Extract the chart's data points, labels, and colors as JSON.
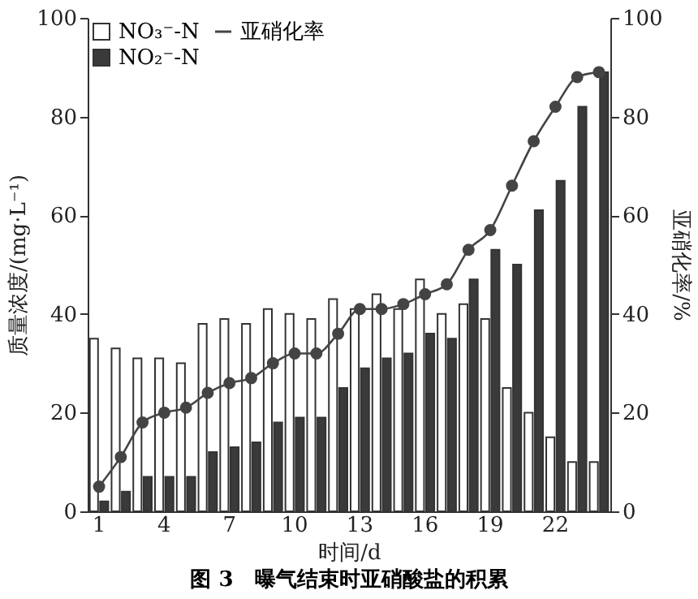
{
  "chart_data": {
    "type": "bar",
    "title": "图 3　曝气结束时亚硝酸盐的积累",
    "xlabel": "时间/d",
    "ylabel": "质量浓度/(mg·L⁻¹)",
    "y2label": "亚硝化率/%",
    "categories": [
      "1",
      null,
      null,
      "4",
      null,
      null,
      "7",
      null,
      null,
      "10",
      null,
      null,
      "13",
      null,
      null,
      "16",
      null,
      null,
      "19",
      null,
      null,
      "22",
      null,
      null
    ],
    "series": [
      {
        "name": "NO₃⁻-N",
        "color": "#ffffff",
        "values": [
          35,
          33,
          31,
          31,
          30,
          38,
          39,
          38,
          41,
          40,
          39,
          43,
          41,
          44,
          41,
          47,
          40,
          42,
          39,
          25,
          20,
          15,
          10,
          10
        ]
      },
      {
        "name": "NO₂⁻-N",
        "color": "#3a3a3a",
        "values": [
          2,
          4,
          7,
          7,
          7,
          12,
          13,
          14,
          18,
          19,
          19,
          25,
          29,
          31,
          32,
          36,
          35,
          47,
          53,
          50,
          61,
          67,
          82,
          89
        ]
      },
      {
        "name": "亚硝化率",
        "type": "line",
        "axis": "y2",
        "color": "#444444",
        "values": [
          5,
          11,
          18,
          20,
          21,
          24,
          26,
          27,
          30,
          32,
          32,
          36,
          41,
          41,
          42,
          44,
          46,
          53,
          57,
          66,
          75,
          82,
          88,
          89
        ]
      }
    ],
    "ylim": [
      0,
      100
    ],
    "yticks": [
      0,
      20,
      40,
      60,
      80,
      100
    ],
    "y2lim": [
      0,
      100
    ],
    "y2ticks": [
      0,
      20,
      40,
      60,
      80,
      100
    ],
    "legend": "top left",
    "marker": "circle",
    "grid": false
  }
}
